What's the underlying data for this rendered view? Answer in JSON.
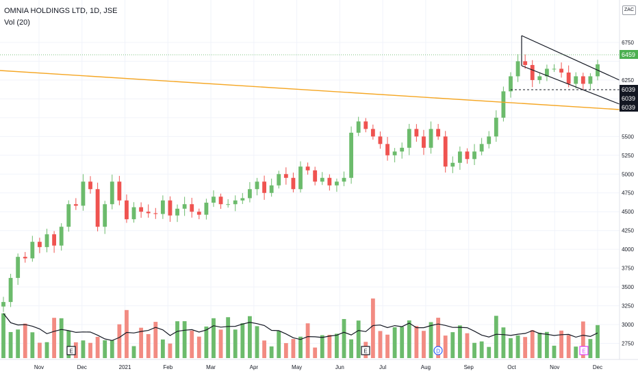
{
  "header": {
    "title": "OMNIA HOLDINGS LTD, 1D, JSE",
    "indicator": "Vol (20)",
    "currency": "ZAC"
  },
  "price_labels": {
    "last": "6459",
    "support_a": "6039",
    "support_b": "6039",
    "support_c": "6039"
  },
  "colors": {
    "up": "#26a69a",
    "up_volume": "#6cbb6c",
    "down": "#ef5350",
    "down_volume": "#f28b82",
    "trendline": "#f5a623",
    "channel": "#131722",
    "last_price": "#4caf50",
    "label_dark": "#131722"
  },
  "chart_data": {
    "type": "candlestick",
    "symbol": "OMNIA HOLDINGS LTD",
    "interval": "1D",
    "exchange": "JSE",
    "y_ticks": [
      6750,
      6500,
      6250,
      6000,
      5750,
      5500,
      5250,
      5000,
      4750,
      4500,
      4250,
      4000,
      3750,
      3500,
      3250,
      3000,
      2750
    ],
    "y_tick_labels": [
      "6750",
      "",
      "6250",
      "",
      "",
      "5500",
      "5250",
      "5000",
      "4750",
      "4500",
      "4250",
      "4000",
      "3750",
      "3500",
      "3250",
      "3000",
      "2750"
    ],
    "x_ticks": [
      "Nov",
      "Dec",
      "2021",
      "Feb",
      "Mar",
      "Apr",
      "May",
      "Jun",
      "Jul",
      "Aug",
      "Sep",
      "Oct",
      "Nov",
      "Dec"
    ],
    "ylim": [
      2600,
      6950
    ],
    "close_series": [
      3300,
      3620,
      3900,
      3880,
      4100,
      4030,
      4200,
      4050,
      4300,
      4600,
      4580,
      4900,
      4800,
      4300,
      4600,
      4900,
      4650,
      4400,
      4560,
      4500,
      4480,
      4470,
      4650,
      4450,
      4540,
      4600,
      4500,
      4460,
      4620,
      4700,
      4600,
      4600,
      4650,
      4680,
      4800,
      4900,
      4750,
      4850,
      5000,
      4950,
      4800,
      5100,
      5050,
      4900,
      4950,
      4850,
      4900,
      4950,
      5550,
      5700,
      5600,
      5500,
      5400,
      5250,
      5300,
      5350,
      5600,
      5500,
      5350,
      5600,
      5500,
      5100,
      5150,
      5300,
      5200,
      5300,
      5400,
      5500,
      5750,
      6100,
      6300,
      6500,
      6450,
      6250,
      6300,
      6400,
      6400,
      6350,
      6200,
      6300,
      6200,
      6300,
      6459
    ],
    "last_price": 6459,
    "support_level": 6039,
    "trendline_labels": [
      "6039",
      "6039"
    ],
    "event_markers": [
      "E",
      "E",
      "D",
      "E"
    ],
    "volume_indicator": "Vol (20)",
    "volume_ylim": [
      0,
      1
    ]
  }
}
